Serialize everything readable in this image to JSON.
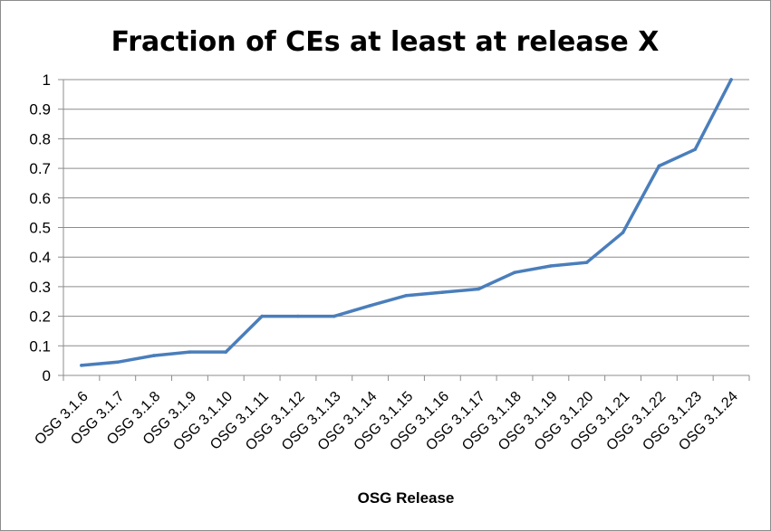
{
  "chart_data": {
    "type": "line",
    "title": "Fraction of CEs at least at release X",
    "xlabel": "OSG Release",
    "ylabel": "",
    "ylim": [
      0,
      1
    ],
    "yticks": [
      "0",
      "0.1",
      "0.2",
      "0.3",
      "0.4",
      "0.5",
      "0.6",
      "0.7",
      "0.8",
      "0.9",
      "1"
    ],
    "grid": true,
    "legend": "none",
    "categories": [
      "OSG 3.1.6",
      "OSG 3.1.7",
      "OSG 3.1.8",
      "OSG 3.1.9",
      "OSG 3.1.10",
      "OSG 3.1.11",
      "OSG 3.1.12",
      "OSG 3.1.13",
      "OSG 3.1.14",
      "OSG 3.1.15",
      "OSG 3.1.16",
      "OSG 3.1.17",
      "OSG 3.1.18",
      "OSG 3.1.19",
      "OSG 3.1.20",
      "OSG 3.1.21",
      "OSG 3.1.22",
      "OSG 3.1.23",
      "OSG 3.1.24"
    ],
    "series": [
      {
        "color": "#4a7ebb",
        "values": [
          0.034,
          0.045,
          0.067,
          0.079,
          0.079,
          0.2,
          0.2,
          0.2,
          0.236,
          0.27,
          0.281,
          0.292,
          0.348,
          0.37,
          0.382,
          0.483,
          0.708,
          0.764,
          1.0
        ]
      }
    ]
  }
}
